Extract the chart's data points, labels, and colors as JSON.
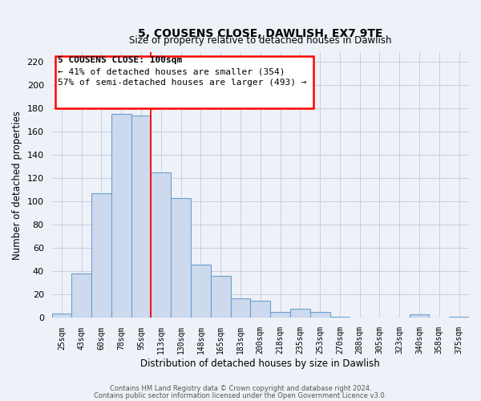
{
  "title": "5, COUSENS CLOSE, DAWLISH, EX7 9TE",
  "subtitle": "Size of property relative to detached houses in Dawlish",
  "xlabel": "Distribution of detached houses by size in Dawlish",
  "ylabel": "Number of detached properties",
  "bar_labels": [
    "25sqm",
    "43sqm",
    "60sqm",
    "78sqm",
    "95sqm",
    "113sqm",
    "130sqm",
    "148sqm",
    "165sqm",
    "183sqm",
    "200sqm",
    "218sqm",
    "235sqm",
    "253sqm",
    "270sqm",
    "288sqm",
    "305sqm",
    "323sqm",
    "340sqm",
    "358sqm",
    "375sqm"
  ],
  "bar_values": [
    4,
    38,
    107,
    175,
    174,
    125,
    103,
    46,
    36,
    17,
    15,
    5,
    8,
    5,
    1,
    0,
    0,
    0,
    3,
    0,
    1
  ],
  "bar_color": "#cddaed",
  "bar_edge_color": "#6a9fd0",
  "ylim": [
    0,
    228
  ],
  "yticks": [
    0,
    20,
    40,
    60,
    80,
    100,
    120,
    140,
    160,
    180,
    200,
    220
  ],
  "red_line_x": 4.5,
  "annotation_line0": "5 COUSENS CLOSE: 100sqm",
  "annotation_line1": "← 41% of detached houses are smaller (354)",
  "annotation_line2": "57% of semi-detached houses are larger (493) →",
  "footer1": "Contains HM Land Registry data © Crown copyright and database right 2024.",
  "footer2": "Contains public sector information licensed under the Open Government Licence v3.0.",
  "bg_color": "#eef2f8",
  "plot_bg_color": "#eef2f8",
  "grid_color": "#c5cfe0"
}
